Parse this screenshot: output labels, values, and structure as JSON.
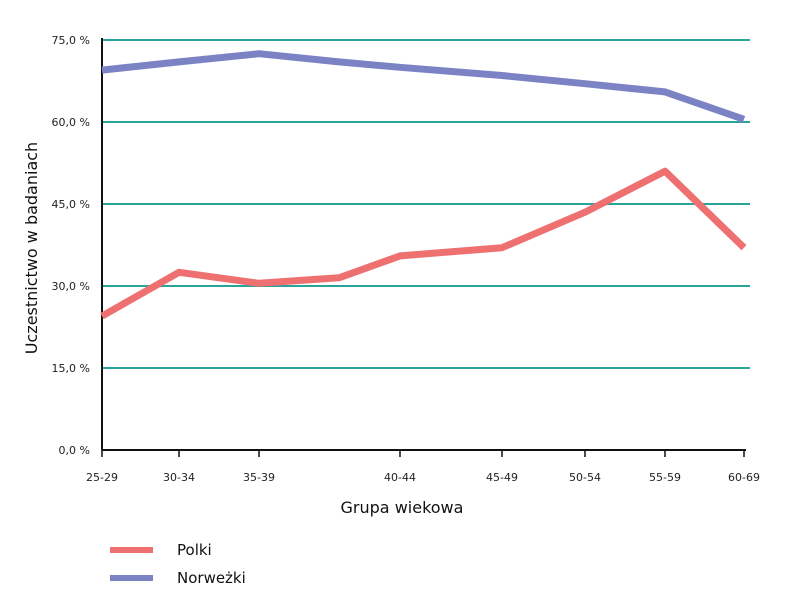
{
  "chart_data": {
    "type": "line",
    "xlabel": "Grupa wiekowa",
    "ylabel": "Uczestnictwo w badaniach",
    "ylim": [
      0,
      75
    ],
    "ytick_values": [
      0,
      15,
      30,
      45,
      60,
      75
    ],
    "ytick_labels": [
      "0,0 %",
      "15,0 %",
      "30,0 %",
      "45,0 %",
      "60,0 %",
      "75,0 %"
    ],
    "categories": [
      "25-29",
      "30-34",
      "35-39",
      "",
      "40-44",
      "45-49",
      "50-54",
      "55-59",
      "60-69"
    ],
    "tick_labels": [
      "25-29",
      "30-34",
      "35-39",
      "40-44",
      "45-49",
      "50-54",
      "55-59",
      "60-69"
    ],
    "grid": "horizontal",
    "legend_position": "bottom-left",
    "series": [
      {
        "name": "Polki",
        "color": "#ee7070",
        "values": [
          24.5,
          32.5,
          30.5,
          31.5,
          35.5,
          37.0,
          43.5,
          51.0,
          37.0
        ]
      },
      {
        "name": "Norweżki",
        "color": "#7c83c4",
        "values": [
          69.5,
          71.0,
          72.5,
          71.0,
          70.0,
          68.5,
          67.0,
          65.5,
          60.5
        ]
      }
    ],
    "gridline_color": "#2aa39a"
  }
}
